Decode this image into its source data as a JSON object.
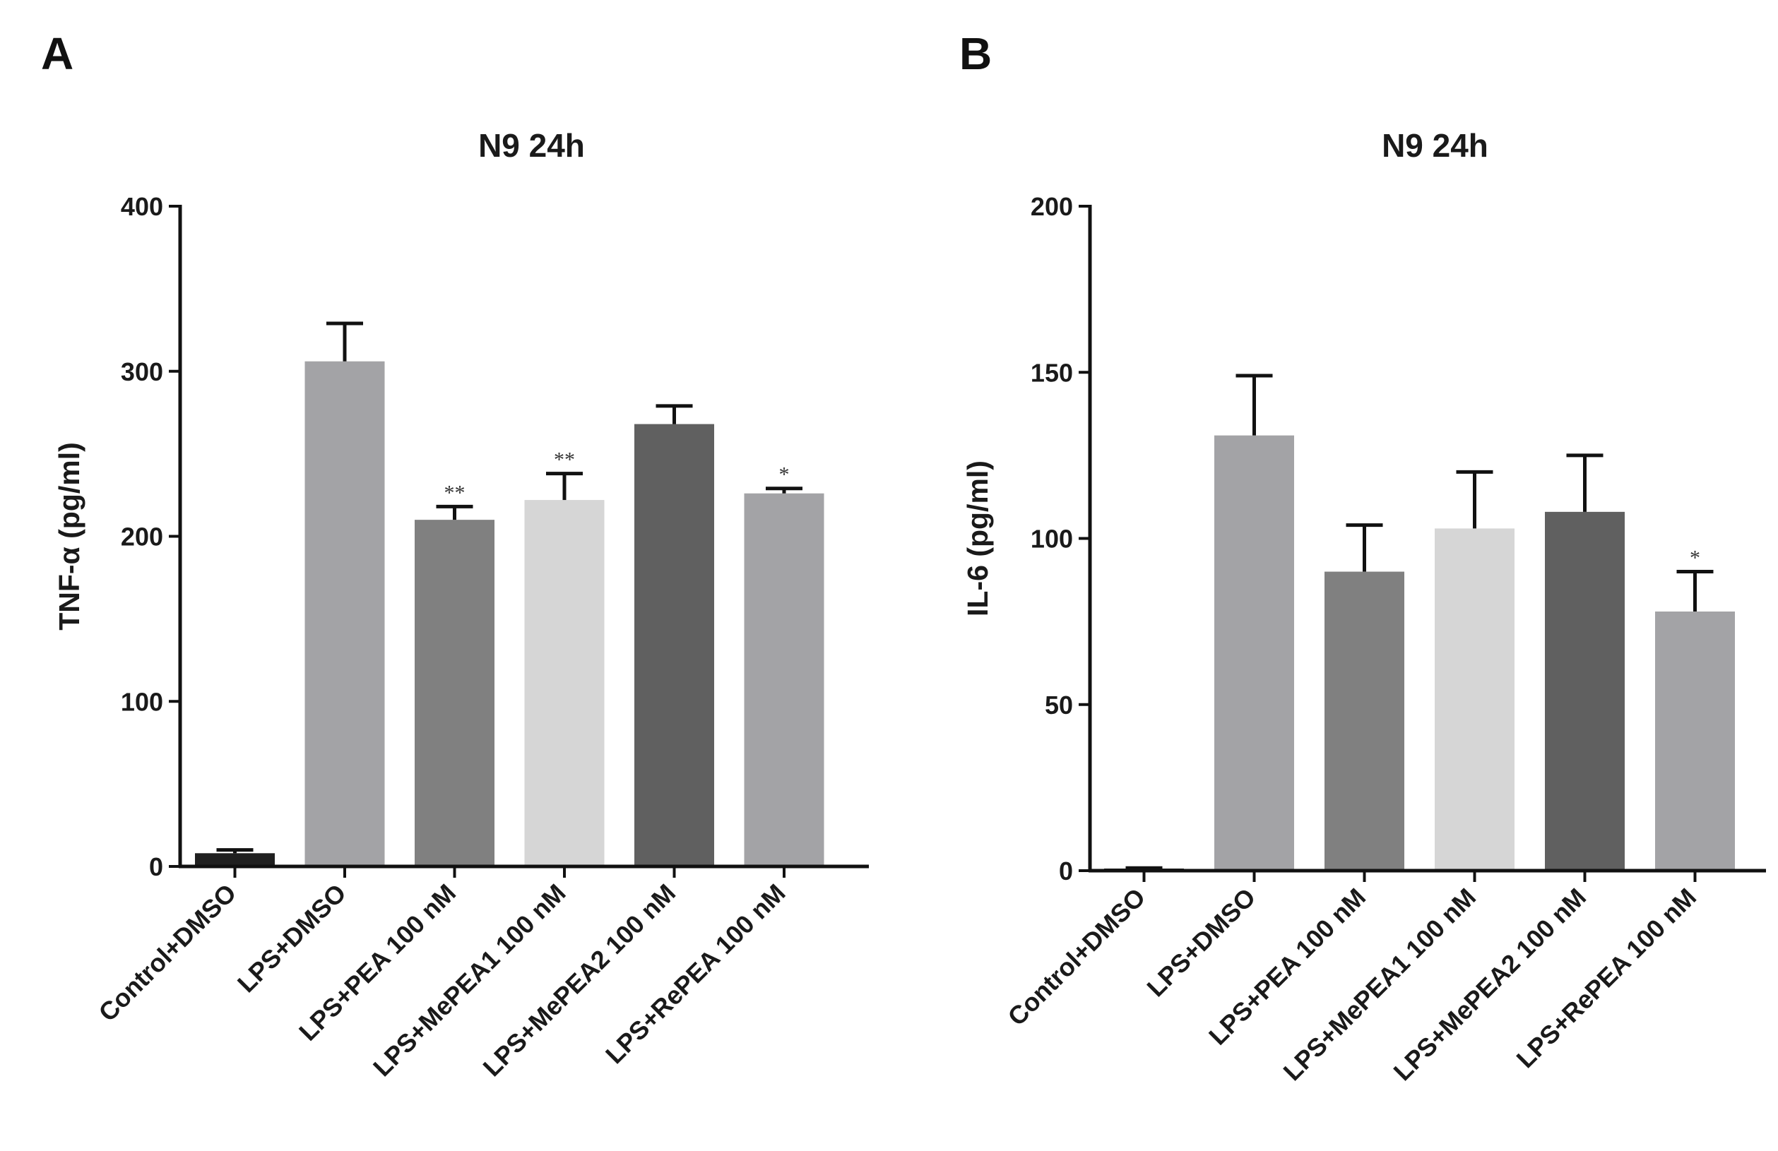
{
  "panels": [
    {
      "letter": "A"
    },
    {
      "letter": "B"
    }
  ],
  "chart_data": [
    {
      "panel": "A",
      "type": "bar",
      "title": "N9 24h",
      "xlabel": "",
      "ylabel": "TNF-α (pg/ml)",
      "ylim": [
        0,
        400
      ],
      "yticks": [
        0,
        100,
        200,
        300,
        400
      ],
      "categories": [
        "Control+DMSO",
        "LPS+DMSO",
        "LPS+PEA 100 nM",
        "LPS+MePEA1 100 nM",
        "LPS+MePEA2 100 nM",
        "LPS+RePEA 100 nM"
      ],
      "values": [
        8,
        306,
        210,
        222,
        268,
        226
      ],
      "errors": [
        2,
        23,
        8,
        16,
        11,
        3
      ],
      "significance": [
        "",
        "",
        "**",
        "**",
        "",
        "*"
      ],
      "colors": [
        "#202020",
        "#a3a3a6",
        "#808080",
        "#d6d6d6",
        "#606060",
        "#a3a3a6"
      ]
    },
    {
      "panel": "B",
      "type": "bar",
      "title": "N9 24h",
      "xlabel": "",
      "ylabel": "IL-6 (pg/ml)",
      "ylim": [
        0,
        200
      ],
      "yticks": [
        0,
        50,
        100,
        150,
        200
      ],
      "categories": [
        "Control+DMSO",
        "LPS+DMSO",
        "LPS+PEA 100 nM",
        "LPS+MePEA1 100 nM",
        "LPS+MePEA2 100 nM",
        "LPS+RePEA 100 nM"
      ],
      "values": [
        0.5,
        131,
        90,
        103,
        108,
        78
      ],
      "errors": [
        0.3,
        18,
        14,
        17,
        17,
        12
      ],
      "significance": [
        "",
        "",
        "",
        "",
        "",
        "*"
      ],
      "colors": [
        "#202020",
        "#a3a3a6",
        "#808080",
        "#d6d6d6",
        "#606060",
        "#a3a3a6"
      ]
    }
  ]
}
